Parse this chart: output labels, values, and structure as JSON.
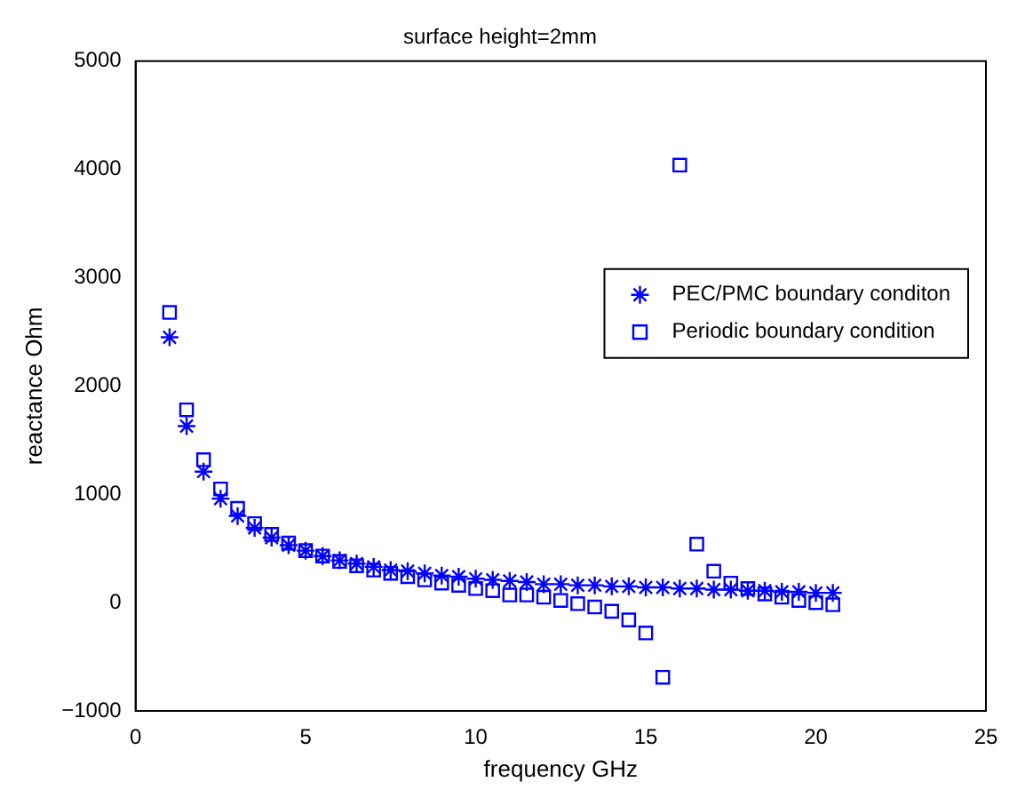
{
  "chart_data": {
    "type": "scatter",
    "title": "surface height=2mm",
    "xlabel": "frequency GHz",
    "ylabel": "reactance Ohm",
    "x": [
      1,
      1.5,
      2,
      2.5,
      3,
      3.5,
      4,
      4.5,
      5,
      5.5,
      6,
      6.5,
      7,
      7.5,
      8,
      8.5,
      9,
      9.5,
      10,
      10.5,
      11,
      11.5,
      12,
      12.5,
      13,
      13.5,
      14,
      14.5,
      15,
      15.5,
      16,
      16.5,
      17,
      17.5,
      18,
      18.5,
      19,
      19.5,
      20,
      20.5
    ],
    "series": [
      {
        "name": "PEC/PMC boundary conditon",
        "color": "#0000ff",
        "marker": "cross",
        "values": [
          2450,
          1630,
          1210,
          960,
          800,
          690,
          600,
          530,
          480,
          430,
          390,
          360,
          330,
          300,
          290,
          270,
          250,
          240,
          220,
          210,
          200,
          190,
          170,
          170,
          160,
          160,
          150,
          150,
          140,
          140,
          130,
          130,
          120,
          120,
          110,
          110,
          100,
          100,
          90,
          90
        ]
      },
      {
        "name": "Periodic boundary condition",
        "color": "#0000ff",
        "marker": "square",
        "values": [
          2680,
          1780,
          1320,
          1050,
          870,
          730,
          630,
          550,
          480,
          430,
          380,
          340,
          300,
          270,
          240,
          210,
          180,
          160,
          130,
          110,
          70,
          70,
          50,
          20,
          -10,
          -40,
          -80,
          -160,
          -280,
          -690,
          4040,
          540,
          290,
          180,
          130,
          80,
          50,
          20,
          0,
          -20
        ]
      }
    ],
    "xlim": [
      0,
      25
    ],
    "xticks": [
      0,
      5,
      10,
      15,
      20,
      25
    ],
    "ylim": [
      -1000,
      5000
    ],
    "yticks": [
      -1000,
      0,
      1000,
      2000,
      3000,
      4000,
      5000
    ],
    "grid": false,
    "legend": "right"
  }
}
